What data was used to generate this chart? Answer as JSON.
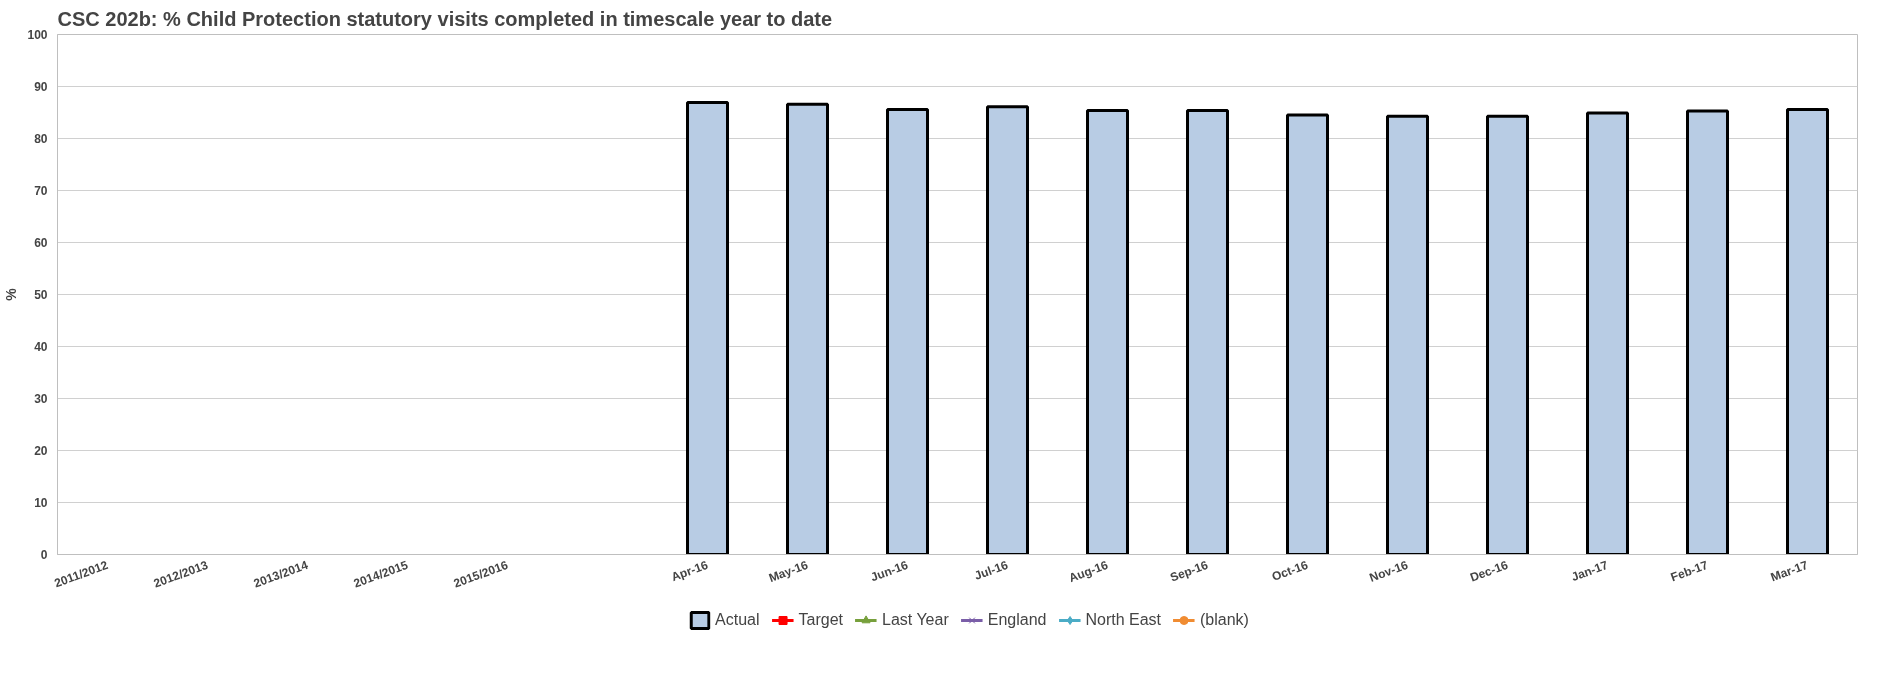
{
  "chart_data": {
    "type": "bar",
    "title": "CSC 202b: % Child Protection statutory visits completed in timescale year to date",
    "ylabel": "%",
    "categories": [
      "2011/2012",
      "2012/2013",
      "2013/2014",
      "2014/2015",
      "2015/2016",
      null,
      "Apr-16",
      "May-16",
      "Jun-16",
      "Jul-16",
      "Aug-16",
      "Sep-16",
      "Oct-16",
      "Nov-16",
      "Dec-16",
      "Jan-17",
      "Feb-17",
      "Mar-17"
    ],
    "series": [
      {
        "name": "Actual",
        "color": "#b8cce4",
        "values": [
          null,
          null,
          null,
          null,
          null,
          null,
          86.9,
          86.6,
          85.6,
          86.1,
          85.4,
          85.4,
          84.5,
          84.3,
          84.3,
          84.9,
          85.3,
          85.6
        ]
      },
      {
        "name": "Target",
        "type": "line",
        "color": "#ff0000",
        "marker": "square",
        "values": [
          null,
          null,
          null,
          null,
          null,
          null,
          null,
          null,
          null,
          null,
          null,
          null,
          null,
          null,
          null,
          null,
          null,
          null
        ]
      },
      {
        "name": "Last Year",
        "type": "line",
        "color": "#77a03c",
        "marker": "triangle",
        "values": [
          null,
          null,
          null,
          null,
          null,
          null,
          null,
          null,
          null,
          null,
          null,
          null,
          null,
          null,
          null,
          null,
          null,
          null
        ]
      },
      {
        "name": "England",
        "type": "line",
        "color": "#7a5ea8",
        "marker": "cross",
        "values": [
          null,
          null,
          null,
          null,
          null,
          null,
          null,
          null,
          null,
          null,
          null,
          null,
          null,
          null,
          null,
          null,
          null,
          null
        ]
      },
      {
        "name": "North East",
        "type": "line",
        "color": "#4bacc6",
        "marker": "diamond",
        "values": [
          null,
          null,
          null,
          null,
          null,
          null,
          null,
          null,
          null,
          null,
          null,
          null,
          null,
          null,
          null,
          null,
          null,
          null
        ]
      },
      {
        "name": "(blank)",
        "type": "line",
        "color": "#f08c32",
        "marker": "circle",
        "values": [
          null,
          null,
          null,
          null,
          null,
          null,
          null,
          null,
          null,
          null,
          null,
          null,
          null,
          null,
          null,
          null,
          null,
          null
        ]
      }
    ],
    "ylim": [
      0,
      100
    ],
    "yticks": [
      0,
      10,
      20,
      30,
      40,
      50,
      60,
      70,
      80,
      90,
      100
    ],
    "grid": "y",
    "legend": "bottom"
  }
}
